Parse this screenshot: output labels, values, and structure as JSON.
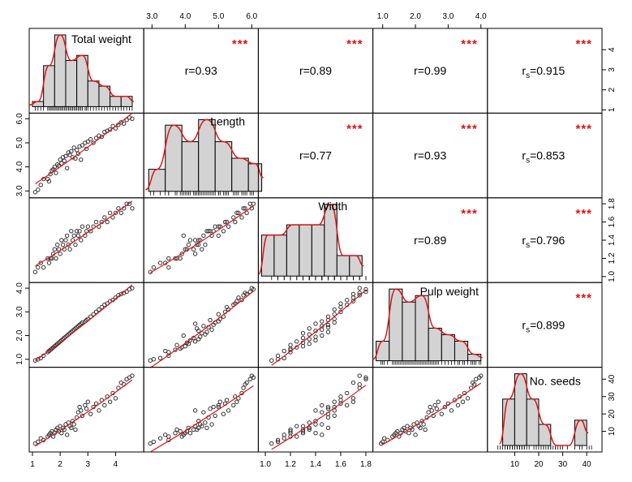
{
  "chart_data": {
    "type": "scatter-matrix",
    "variables": [
      "Total weight",
      "Length",
      "Width",
      "Pulp weight",
      "No. seeds"
    ],
    "ranges": [
      [
        1,
        4.9
      ],
      [
        2.85,
        6.1
      ],
      [
        0.97,
        1.83
      ],
      [
        0.8,
        4.1
      ],
      [
        0,
        45
      ]
    ],
    "ticks": [
      [
        1,
        2,
        3,
        4
      ],
      [
        3.0,
        4.0,
        5.0,
        6.0
      ],
      [
        1.0,
        1.2,
        1.4,
        1.6,
        1.8
      ],
      [
        1.0,
        2.0,
        3.0,
        4.0
      ],
      [
        10,
        20,
        30,
        40
      ]
    ],
    "tick_labels": [
      [
        "1",
        "2",
        "3",
        "4"
      ],
      [
        "3.0",
        "4.0",
        "5.0",
        "6.0"
      ],
      [
        "1.0",
        "1.2",
        "1.4",
        "1.6",
        "1.8"
      ],
      [
        "1.0",
        "2.0",
        "3.0",
        "4.0"
      ],
      [
        "10",
        "20",
        "30",
        "40"
      ]
    ],
    "correlations": [
      {
        "row": 0,
        "col": 1,
        "label": "r=0.93",
        "stars": "***"
      },
      {
        "row": 0,
        "col": 2,
        "label": "r=0.89",
        "stars": "***"
      },
      {
        "row": 0,
        "col": 3,
        "label": "r=0.99",
        "stars": "***"
      },
      {
        "row": 0,
        "col": 4,
        "prefix": "r",
        "sub": "s",
        "value": "=0.915",
        "stars": "***"
      },
      {
        "row": 1,
        "col": 2,
        "label": "r=0.77",
        "stars": "***"
      },
      {
        "row": 1,
        "col": 3,
        "label": "r=0.93",
        "stars": "***"
      },
      {
        "row": 1,
        "col": 4,
        "prefix": "r",
        "sub": "s",
        "value": "=0.853",
        "stars": "***"
      },
      {
        "row": 2,
        "col": 3,
        "label": "r=0.89",
        "stars": "***"
      },
      {
        "row": 2,
        "col": 4,
        "prefix": "r",
        "sub": "s",
        "value": "=0.796",
        "stars": "***"
      },
      {
        "row": 3,
        "col": 4,
        "prefix": "r",
        "sub": "s",
        "value": "=0.899",
        "stars": "***"
      }
    ],
    "histograms": [
      {
        "breaks": [
          1.0,
          1.4,
          1.8,
          2.2,
          2.6,
          3.0,
          3.4,
          3.8,
          4.2,
          4.6
        ],
        "counts": [
          1,
          8,
          14,
          9,
          10,
          5,
          4,
          2,
          2
        ]
      },
      {
        "breaks": [
          2.9,
          3.4,
          3.9,
          4.4,
          4.9,
          5.4,
          5.9,
          6.3
        ],
        "counts": [
          4,
          12,
          9,
          13,
          9,
          6,
          5
        ]
      },
      {
        "breaks": [
          0.97,
          1.07,
          1.17,
          1.27,
          1.37,
          1.47,
          1.57,
          1.67,
          1.77
        ],
        "counts": [
          4,
          4,
          5,
          5,
          5,
          7,
          2,
          2
        ]
      },
      {
        "breaks": [
          0.8,
          1.2,
          1.6,
          2.0,
          2.4,
          2.8,
          3.2,
          3.6,
          4.0
        ],
        "counts": [
          3,
          11,
          9,
          10,
          5,
          4,
          3,
          1
        ]
      },
      {
        "breaks": [
          5,
          10,
          15,
          20,
          25,
          30,
          35,
          40
        ],
        "counts": [
          11,
          17,
          11,
          5,
          0,
          0,
          6
        ]
      }
    ],
    "records": [
      [
        1.1,
        2.95,
        1.05,
        0.95,
        3
      ],
      [
        1.2,
        3.05,
        1.1,
        1.0,
        4
      ],
      [
        1.3,
        3.25,
        1.15,
        1.05,
        6
      ],
      [
        1.4,
        3.5,
        1.1,
        1.15,
        5
      ],
      [
        1.55,
        3.5,
        1.2,
        1.3,
        7
      ],
      [
        1.6,
        3.4,
        1.15,
        1.35,
        8
      ],
      [
        1.65,
        3.7,
        1.2,
        1.4,
        9
      ],
      [
        1.7,
        3.85,
        1.2,
        1.45,
        10
      ],
      [
        1.75,
        3.9,
        1.25,
        1.5,
        7
      ],
      [
        1.8,
        4.0,
        1.3,
        1.55,
        9
      ],
      [
        1.85,
        3.75,
        1.2,
        1.6,
        11
      ],
      [
        1.9,
        4.1,
        1.35,
        1.65,
        12
      ],
      [
        1.95,
        4.05,
        1.3,
        1.7,
        10
      ],
      [
        2.0,
        4.3,
        1.25,
        1.75,
        13
      ],
      [
        2.05,
        4.15,
        1.4,
        1.8,
        9
      ],
      [
        2.1,
        4.4,
        1.35,
        1.85,
        12
      ],
      [
        2.15,
        4.25,
        1.3,
        1.9,
        11
      ],
      [
        2.2,
        4.45,
        1.4,
        1.95,
        14
      ],
      [
        2.25,
        3.95,
        1.45,
        2.0,
        8
      ],
      [
        2.3,
        4.6,
        1.35,
        2.05,
        15
      ],
      [
        2.35,
        4.5,
        1.3,
        2.1,
        13
      ],
      [
        2.4,
        4.65,
        1.5,
        2.15,
        12
      ],
      [
        2.45,
        4.4,
        1.4,
        2.2,
        16
      ],
      [
        2.5,
        4.8,
        1.45,
        2.25,
        14
      ],
      [
        2.55,
        4.35,
        1.35,
        2.3,
        11
      ],
      [
        2.6,
        4.7,
        1.5,
        2.35,
        18
      ],
      [
        2.65,
        4.55,
        1.45,
        2.4,
        21
      ],
      [
        2.7,
        4.85,
        1.5,
        2.45,
        24
      ],
      [
        2.75,
        4.3,
        1.4,
        2.5,
        22
      ],
      [
        2.8,
        4.9,
        1.55,
        2.55,
        19
      ],
      [
        2.9,
        5.0,
        1.45,
        2.6,
        25
      ],
      [
        2.95,
        4.75,
        1.5,
        2.65,
        23
      ],
      [
        3.0,
        5.05,
        1.55,
        2.7,
        27
      ],
      [
        3.1,
        5.15,
        1.5,
        2.8,
        20
      ],
      [
        3.2,
        5.0,
        1.55,
        2.9,
        24
      ],
      [
        3.3,
        5.2,
        1.6,
        3.0,
        26
      ],
      [
        3.4,
        5.3,
        1.55,
        3.1,
        22
      ],
      [
        3.5,
        5.25,
        1.6,
        3.2,
        28
      ],
      [
        3.6,
        5.45,
        1.65,
        3.3,
        25
      ],
      [
        3.7,
        5.5,
        1.6,
        3.35,
        30
      ],
      [
        3.8,
        5.55,
        1.7,
        3.45,
        27
      ],
      [
        3.9,
        5.7,
        1.65,
        3.5,
        32
      ],
      [
        4.0,
        5.6,
        1.7,
        3.6,
        29
      ],
      [
        4.1,
        5.75,
        1.75,
        3.7,
        35
      ],
      [
        4.2,
        5.85,
        1.7,
        3.75,
        38
      ],
      [
        4.3,
        5.8,
        1.75,
        3.8,
        37
      ],
      [
        4.4,
        5.95,
        1.8,
        3.85,
        40
      ],
      [
        4.5,
        6.05,
        1.8,
        3.95,
        41
      ],
      [
        4.6,
        6.0,
        1.75,
        4.0,
        42
      ]
    ],
    "colors": {
      "bar_fill": "#d3d3d3",
      "smooth": "#e01515",
      "stars": "#e01010",
      "points": "#333333"
    },
    "grid": false
  }
}
